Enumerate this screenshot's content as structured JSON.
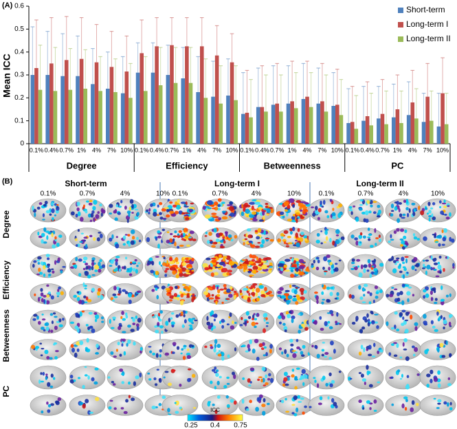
{
  "chart_data": {
    "type": "bar",
    "panel_label": "(A)",
    "y_label": "Mean ICC",
    "categories": [
      "0.1%",
      "0.4%",
      "0.7%",
      "1%",
      "4%",
      "7%",
      "10%",
      "0.1%",
      "0.4%",
      "0.7%",
      "1%",
      "4%",
      "7%",
      "10%",
      "0.1%",
      "0.4%",
      "0.7%",
      "1%",
      "4%",
      "7%",
      "10%",
      "0.1%",
      "0.4%",
      "0.7%",
      "1%",
      "4%",
      "7%",
      "10%"
    ],
    "group_labels": [
      "Degree",
      "Efficiency",
      "Betweenness",
      "PC"
    ],
    "series": [
      {
        "name": "Short-term",
        "color": "#4f81bd",
        "values": [
          0.3,
          0.3,
          0.295,
          0.295,
          0.26,
          0.24,
          0.22,
          0.31,
          0.31,
          0.3,
          0.285,
          0.225,
          0.205,
          0.21,
          0.13,
          0.16,
          0.17,
          0.175,
          0.195,
          0.175,
          0.165,
          0.09,
          0.1,
          0.11,
          0.115,
          0.125,
          0.095,
          0.075
        ],
        "errors": [
          0.21,
          0.19,
          0.185,
          0.175,
          0.155,
          0.16,
          0.16,
          0.13,
          0.13,
          0.13,
          0.135,
          0.155,
          0.155,
          0.16,
          0.18,
          0.17,
          0.17,
          0.165,
          0.155,
          0.155,
          0.145,
          0.15,
          0.15,
          0.14,
          0.145,
          0.145,
          0.125,
          0.145
        ]
      },
      {
        "name": "Long-term I",
        "color": "#c0504d",
        "values": [
          0.33,
          0.35,
          0.365,
          0.37,
          0.355,
          0.335,
          0.315,
          0.395,
          0.425,
          0.43,
          0.425,
          0.425,
          0.385,
          0.355,
          0.135,
          0.16,
          0.175,
          0.185,
          0.205,
          0.185,
          0.17,
          0.095,
          0.12,
          0.13,
          0.15,
          0.18,
          0.205,
          0.22
        ],
        "errors": [
          0.21,
          0.2,
          0.19,
          0.18,
          0.165,
          0.155,
          0.155,
          0.145,
          0.125,
          0.12,
          0.125,
          0.125,
          0.13,
          0.125,
          0.185,
          0.18,
          0.175,
          0.175,
          0.155,
          0.165,
          0.155,
          0.155,
          0.15,
          0.15,
          0.15,
          0.14,
          0.145,
          0.155
        ]
      },
      {
        "name": "Long-term II",
        "color": "#9bbb59",
        "values": [
          0.235,
          0.23,
          0.235,
          0.24,
          0.23,
          0.225,
          0.2,
          0.23,
          0.255,
          0.265,
          0.265,
          0.2,
          0.175,
          0.19,
          0.115,
          0.14,
          0.14,
          0.155,
          0.16,
          0.14,
          0.125,
          0.065,
          0.08,
          0.085,
          0.09,
          0.11,
          0.1,
          0.085
        ],
        "errors": [
          0.195,
          0.19,
          0.18,
          0.17,
          0.15,
          0.145,
          0.15,
          0.15,
          0.165,
          0.155,
          0.155,
          0.17,
          0.165,
          0.15,
          0.165,
          0.16,
          0.16,
          0.155,
          0.15,
          0.16,
          0.155,
          0.145,
          0.14,
          0.145,
          0.14,
          0.13,
          0.13,
          0.135
        ]
      }
    ],
    "ylim": [
      0,
      0.6
    ],
    "yticks": [
      0,
      0.1,
      0.2,
      0.3,
      0.4,
      0.5,
      0.6
    ],
    "legend": "upper right"
  },
  "panel_b": {
    "label": "(B)",
    "conditions": [
      {
        "title": "Short-term",
        "thresholds": [
          "0.1%",
          "0.7%",
          "4%",
          "10%"
        ]
      },
      {
        "title": "Long-term I",
        "thresholds": [
          "0.1%",
          "0.7%",
          "4%",
          "10%"
        ]
      },
      {
        "title": "Long-term II",
        "thresholds": [
          "0.1%",
          "0.7%",
          "4%",
          "10%"
        ]
      }
    ],
    "rows": [
      "Degree",
      "Efficiency",
      "Betweenness",
      "PC"
    ],
    "colorbar": {
      "title": "ICC",
      "ticks": [
        "0.25",
        "0.4",
        "0.75"
      ]
    }
  }
}
